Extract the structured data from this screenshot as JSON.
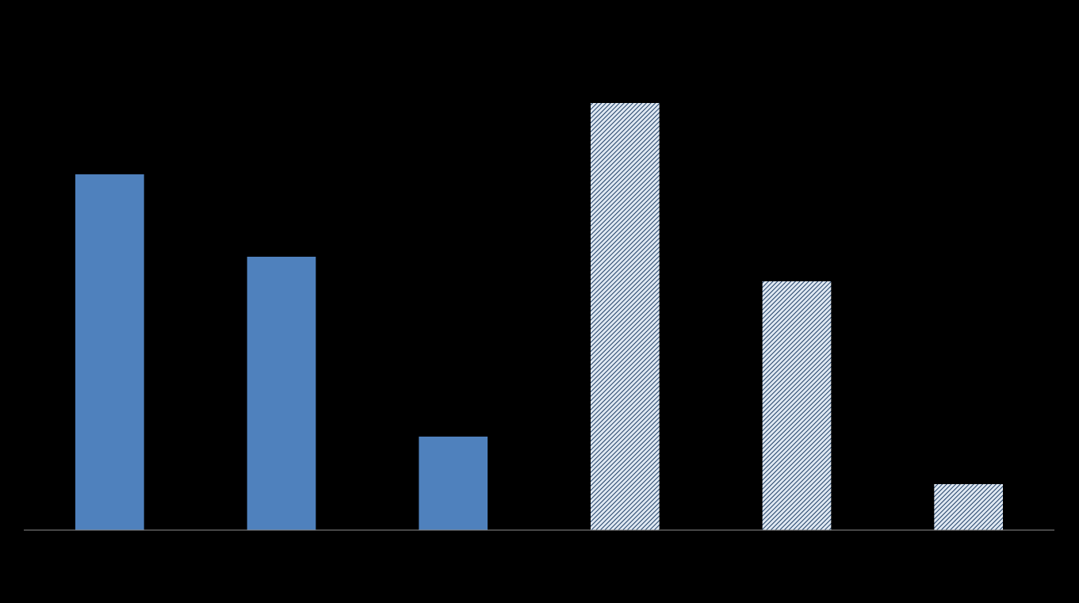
{
  "chart_data": {
    "type": "bar",
    "categories": [
      null,
      null,
      null,
      null,
      null,
      null
    ],
    "values": [
      449,
      345,
      118,
      539,
      314,
      58
    ],
    "color": "#4f81bd",
    "fills": [
      "solid",
      "solid",
      "solid",
      "hatch",
      "hatch",
      "hatch"
    ],
    "ylim": [
      0,
      629
    ]
  }
}
